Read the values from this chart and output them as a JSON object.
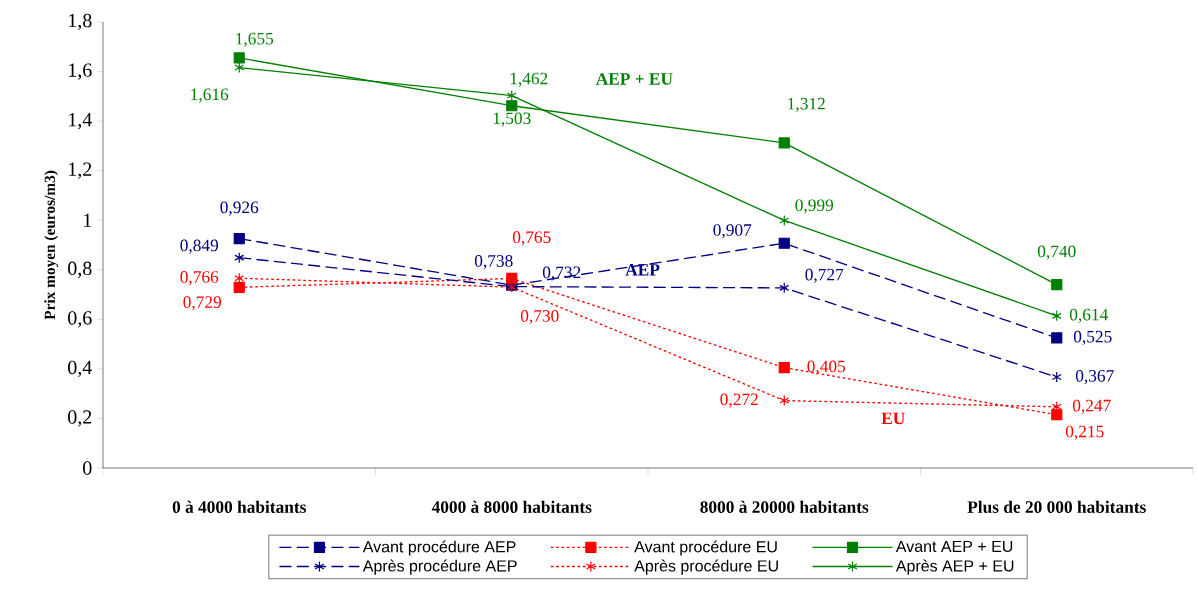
{
  "chart_data": {
    "type": "line",
    "ylabel": "Prix moyen (euros/m3)",
    "categories": [
      "0 à 4000 habitants",
      "4000 à 8000 habitants",
      "8000 à 20000 habitants",
      "Plus de 20 000 habitants"
    ],
    "ylim": [
      0,
      1.8
    ],
    "yticks": [
      {
        "value": 0,
        "label": "0"
      },
      {
        "value": 0.2,
        "label": "0,2"
      },
      {
        "value": 0.4,
        "label": "0,4"
      },
      {
        "value": 0.6,
        "label": "0,6"
      },
      {
        "value": 0.8,
        "label": "0,8"
      },
      {
        "value": 1,
        "label": "1"
      },
      {
        "value": 1.2,
        "label": "1,2"
      },
      {
        "value": 1.4,
        "label": "1,4"
      },
      {
        "value": 1.6,
        "label": "1,6"
      },
      {
        "value": 1.8,
        "label": "1,8"
      }
    ],
    "legend": "bottom",
    "grid": false,
    "annotations": [
      "AEP + EU",
      "AEP",
      "EU"
    ],
    "series": [
      {
        "name": "Avant procédure AEP",
        "color": "#000080",
        "marker": "square",
        "line_style": "dashed",
        "values": [
          0.926,
          0.738,
          0.907,
          0.525
        ],
        "value_labels": [
          "0,926",
          "0,738",
          "0,907",
          "0,525"
        ]
      },
      {
        "name": "Avant procédure EU",
        "color": "#ff0000",
        "marker": "square",
        "line_style": "dotted",
        "values": [
          0.729,
          0.765,
          0.405,
          0.215
        ],
        "value_labels": [
          "0,729",
          "0,765",
          "0,405",
          "0,215"
        ]
      },
      {
        "name": "Avant AEP + EU",
        "color": "#008000",
        "marker": "square",
        "line_style": "solid",
        "values": [
          1.655,
          1.462,
          1.312,
          0.74
        ],
        "value_labels": [
          "1,655",
          "1,462",
          "1,312",
          "0,740"
        ]
      },
      {
        "name": "Après procédure AEP",
        "color": "#000080",
        "marker": "cross",
        "line_style": "dashed",
        "values": [
          0.849,
          0.732,
          0.727,
          0.367
        ],
        "value_labels": [
          "0,849",
          "0,732",
          "0,727",
          "0,367"
        ]
      },
      {
        "name": "Après procédure EU",
        "color": "#ff0000",
        "marker": "cross",
        "line_style": "dotted",
        "values": [
          0.766,
          0.73,
          0.272,
          0.247
        ],
        "value_labels": [
          "0,766",
          "0,730",
          "0,272",
          "0,247"
        ]
      },
      {
        "name": "Après AEP + EU",
        "color": "#008000",
        "marker": "cross",
        "line_style": "solid",
        "values": [
          1.616,
          1.503,
          0.999,
          0.614
        ],
        "value_labels": [
          "1,616",
          "1,503",
          "0,999",
          "0,614"
        ]
      }
    ]
  }
}
